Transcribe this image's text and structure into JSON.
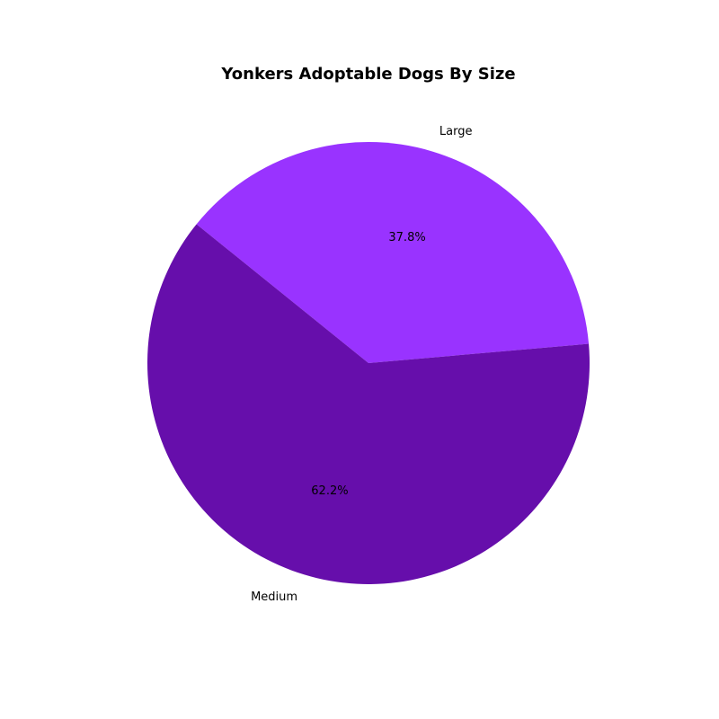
{
  "chart_data": {
    "type": "pie",
    "title": "Yonkers Adoptable Dogs By Size",
    "slices": [
      {
        "label": "Large",
        "value": 37.8,
        "pct_label": "37.8%",
        "color": "#9933ff"
      },
      {
        "label": "Medium",
        "value": 62.2,
        "pct_label": "62.2%",
        "color": "#660eab"
      }
    ],
    "start_angle_deg": 5,
    "direction": "counterclockwise",
    "legend": "none"
  }
}
